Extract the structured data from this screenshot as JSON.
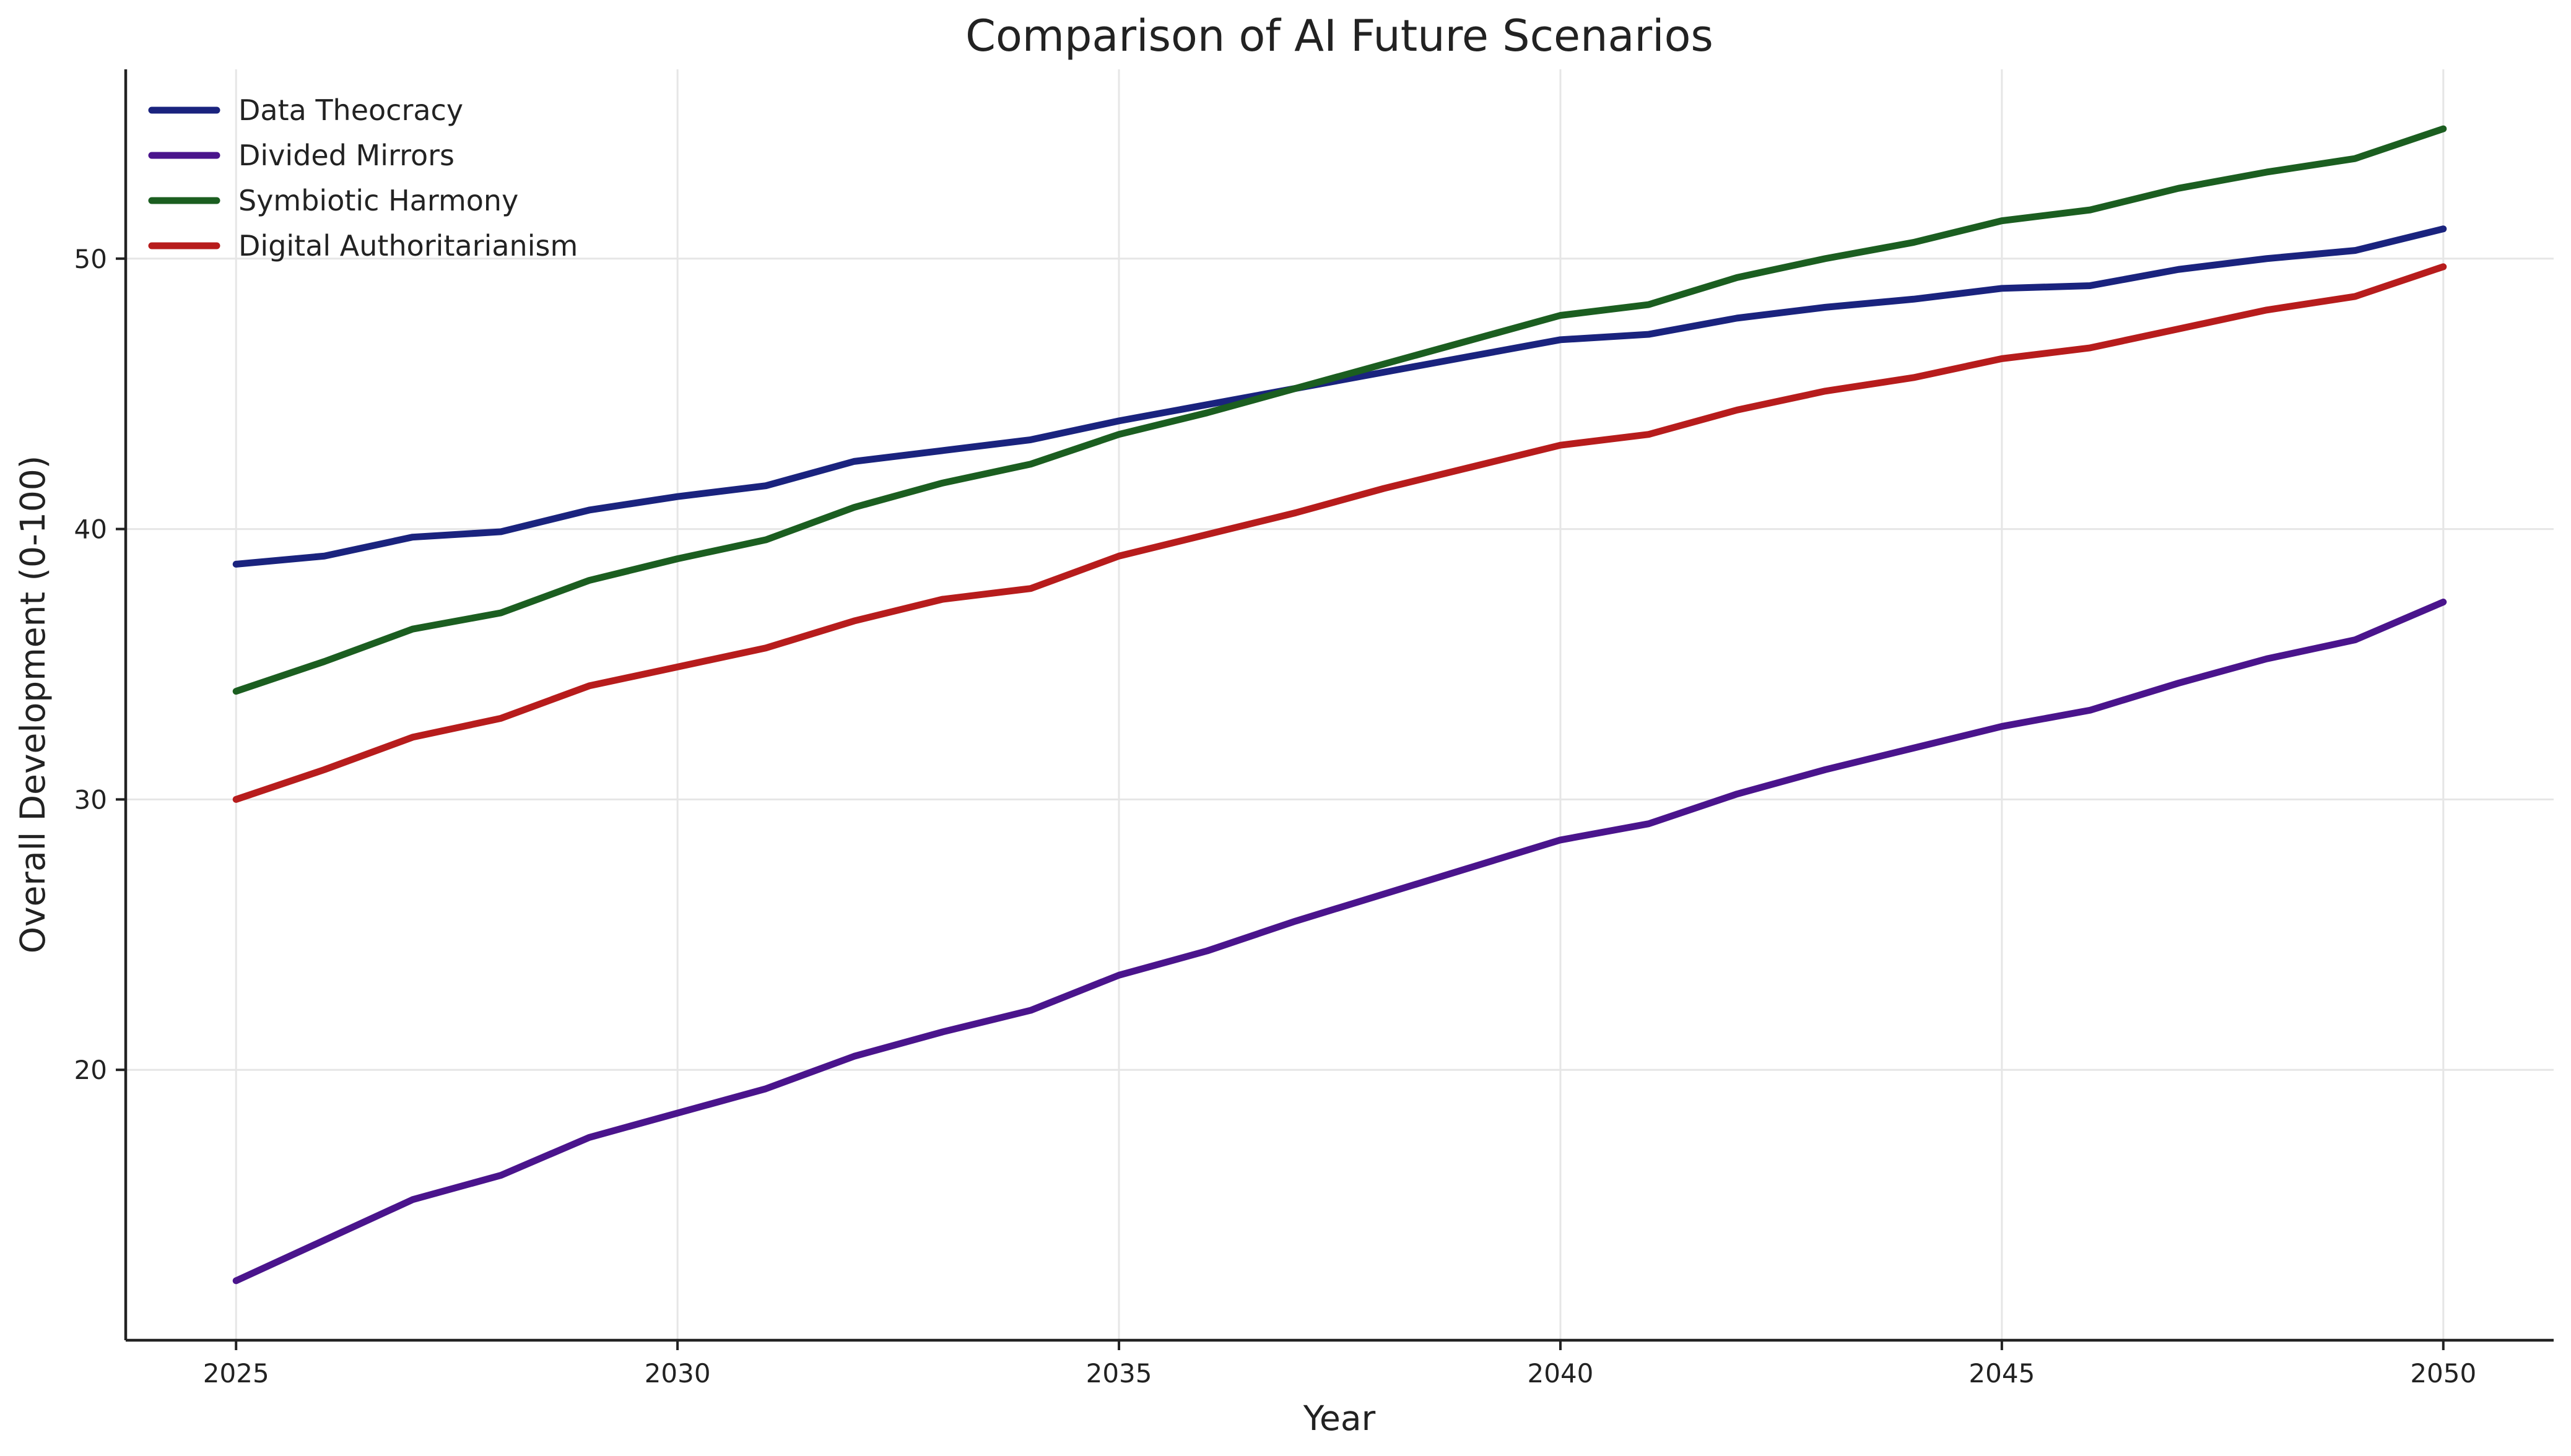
{
  "chart_data": {
    "type": "line",
    "title": "Comparison of AI Future Scenarios",
    "xlabel": "Year",
    "ylabel": "Overall Development (0-100)",
    "x": [
      2025,
      2026,
      2027,
      2028,
      2029,
      2030,
      2031,
      2032,
      2033,
      2034,
      2035,
      2036,
      2037,
      2038,
      2039,
      2040,
      2041,
      2042,
      2043,
      2044,
      2045,
      2046,
      2047,
      2048,
      2049,
      2050
    ],
    "xlim": [
      2023.75,
      2051.25
    ],
    "ylim": [
      10,
      57
    ],
    "xticks": [
      2025,
      2030,
      2035,
      2040,
      2045,
      2050
    ],
    "yticks": [
      20,
      30,
      40,
      50
    ],
    "grid": true,
    "legend_position": "top-left",
    "series": [
      {
        "name": "Data Theocracy",
        "color": "#1a237e",
        "values": [
          38.7,
          39.0,
          39.7,
          39.9,
          40.7,
          41.2,
          41.6,
          42.5,
          42.9,
          43.3,
          44.0,
          44.6,
          45.2,
          45.8,
          46.4,
          47.0,
          47.2,
          47.8,
          48.2,
          48.5,
          48.9,
          49.0,
          49.6,
          50.0,
          50.3,
          51.1
        ]
      },
      {
        "name": "Divided Mirrors",
        "color": "#4a148c",
        "values": [
          12.2,
          13.7,
          15.2,
          16.1,
          17.5,
          18.4,
          19.3,
          20.5,
          21.4,
          22.2,
          23.5,
          24.4,
          25.5,
          26.5,
          27.5,
          28.5,
          29.1,
          30.2,
          31.1,
          31.9,
          32.7,
          33.3,
          34.3,
          35.2,
          35.9,
          37.3
        ]
      },
      {
        "name": "Symbiotic Harmony",
        "color": "#1b5e20",
        "values": [
          34.0,
          35.1,
          36.3,
          36.9,
          38.1,
          38.9,
          39.6,
          40.8,
          41.7,
          42.4,
          43.5,
          44.3,
          45.2,
          46.1,
          47.0,
          47.9,
          48.3,
          49.3,
          50.0,
          50.6,
          51.4,
          51.8,
          52.6,
          53.2,
          53.7,
          54.8
        ]
      },
      {
        "name": "Digital Authoritarianism",
        "color": "#b71c1c",
        "values": [
          30.0,
          31.1,
          32.3,
          33.0,
          34.2,
          34.9,
          35.6,
          36.6,
          37.4,
          37.8,
          39.0,
          39.8,
          40.6,
          41.5,
          42.3,
          43.1,
          43.5,
          44.4,
          45.1,
          45.6,
          46.3,
          46.7,
          47.4,
          48.1,
          48.6,
          49.7
        ]
      }
    ]
  }
}
